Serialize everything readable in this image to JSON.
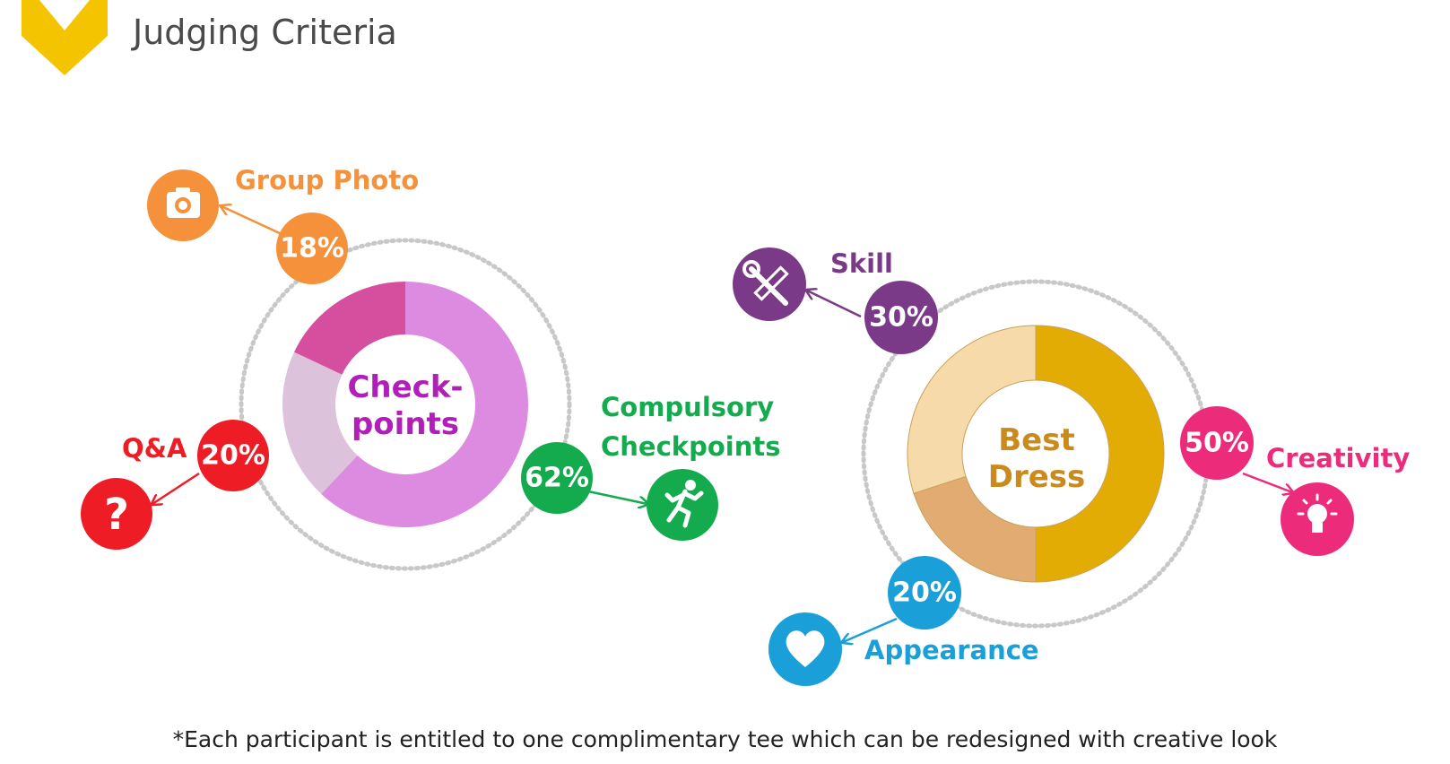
{
  "title": "Judging Criteria",
  "footnote": "*Each participant is entitled to one complimentary tee which can be redesigned with creative look",
  "colors": {
    "logo": "#F5C400",
    "dotted_ring": "#c8c8c8",
    "group_photo": "#F5913A",
    "qa": "#EE1C25",
    "compulsory": "#14AA4E",
    "skill": "#7B3A87",
    "creativity": "#EC2C7A",
    "appearance": "#1A9FD8"
  },
  "chart_data": [
    {
      "type": "pie",
      "title": "Check-\npoints",
      "title_lines": [
        "Check-",
        "points"
      ],
      "title_color": "#B020B8",
      "slices": [
        {
          "label": "Compulsory Checkpoints",
          "label_lines": [
            "Compulsory",
            "Checkpoints"
          ],
          "value": 62,
          "display": "62%",
          "color": "#DD8BE0",
          "badge_color": "#14AA4E",
          "icon": "running-man-icon"
        },
        {
          "label": "Q&A",
          "label_lines": [
            "Q&A"
          ],
          "value": 20,
          "display": "20%",
          "color": "#DCC2DB",
          "badge_color": "#EE1C25",
          "icon": "question-mark-icon"
        },
        {
          "label": "Group Photo",
          "label_lines": [
            "Group Photo"
          ],
          "value": 18,
          "display": "18%",
          "color": "#D64E9E",
          "badge_color": "#F5913A",
          "icon": "camera-icon"
        }
      ]
    },
    {
      "type": "pie",
      "title": "Best\nDress",
      "title_lines": [
        "Best",
        "Dress"
      ],
      "title_color": "#C98A1E",
      "slices": [
        {
          "label": "Creativity",
          "label_lines": [
            "Creativity"
          ],
          "value": 50,
          "display": "50%",
          "color": "#E2AC04",
          "badge_color": "#EC2C7A",
          "icon": "lightbulb-icon"
        },
        {
          "label": "Appearance",
          "label_lines": [
            "Appearance"
          ],
          "value": 20,
          "display": "20%",
          "color": "#E2AB72",
          "badge_color": "#1A9FD8",
          "icon": "heart-icon"
        },
        {
          "label": "Skill",
          "label_lines": [
            "Skill"
          ],
          "value": 30,
          "display": "30%",
          "color": "#F7DAAA",
          "badge_color": "#7B3A87",
          "icon": "tools-icon"
        }
      ]
    }
  ]
}
